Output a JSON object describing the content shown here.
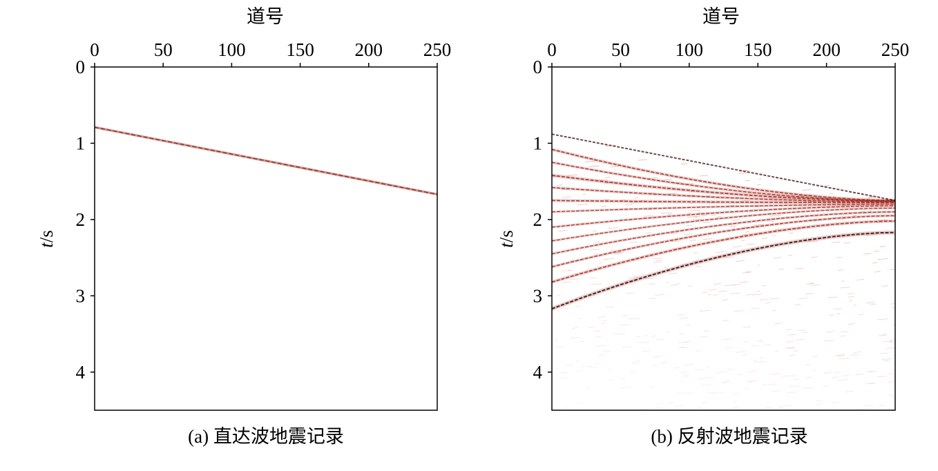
{
  "chart_data": [
    {
      "type": "heatmap",
      "caption": "(a) 直达波地震记录",
      "xlabel": "道号",
      "ylabel_italic": "t",
      "ylabel_rest": "/s",
      "xlim": [
        0,
        250
      ],
      "ylim": [
        0,
        4.5
      ],
      "x_ticks": [
        0,
        50,
        100,
        150,
        200,
        250
      ],
      "y_ticks": [
        0,
        1,
        2,
        3,
        4
      ],
      "x_axis_position": "top",
      "y_axis_inverted": true,
      "grid": false,
      "colormap": [
        "#ffffff",
        "#c0392b",
        "#000000"
      ],
      "events": [
        {
          "kind": "direct",
          "x": [
            0,
            250
          ],
          "t": [
            0.79,
            1.67
          ],
          "strength": 1.0
        }
      ]
    },
    {
      "type": "heatmap",
      "caption": "(b) 反射波地震记录",
      "xlabel": "道号",
      "ylabel_italic": "t",
      "ylabel_rest": "/s",
      "xlim": [
        0,
        250
      ],
      "ylim": [
        0,
        4.5
      ],
      "x_ticks": [
        0,
        50,
        100,
        150,
        200,
        250
      ],
      "y_ticks": [
        0,
        1,
        2,
        3,
        4
      ],
      "x_axis_position": "top",
      "y_axis_inverted": true,
      "grid": false,
      "colormap": [
        "#ffffff",
        "#c0392b",
        "#000000"
      ],
      "mute_line": {
        "x": [
          0,
          250
        ],
        "t": [
          0.88,
          1.75
        ]
      },
      "events": [
        {
          "kind": "reflection",
          "t0": 3.17,
          "t_end": 2.17,
          "strength": 1.0
        },
        {
          "kind": "reflection",
          "t0": 2.82,
          "t_end": 2.02,
          "strength": 0.75
        },
        {
          "kind": "reflection",
          "t0": 2.62,
          "t_end": 1.95,
          "strength": 0.6
        },
        {
          "kind": "reflection",
          "t0": 2.45,
          "t_end": 1.9,
          "strength": 0.55
        },
        {
          "kind": "reflection",
          "t0": 2.28,
          "t_end": 1.85,
          "strength": 0.5
        },
        {
          "kind": "reflection",
          "t0": 2.1,
          "t_end": 1.82,
          "strength": 0.55
        },
        {
          "kind": "reflection",
          "t0": 1.9,
          "t_end": 1.8,
          "strength": 0.5
        },
        {
          "kind": "reflection",
          "t0": 1.75,
          "t_end": 1.78,
          "strength": 0.7
        },
        {
          "kind": "reflection",
          "t0": 1.58,
          "t_end": 1.77,
          "strength": 0.6
        },
        {
          "kind": "reflection",
          "t0": 1.42,
          "t_end": 1.76,
          "strength": 0.8
        },
        {
          "kind": "reflection",
          "t0": 1.25,
          "t_end": 1.76,
          "strength": 0.6
        },
        {
          "kind": "reflection",
          "t0": 1.08,
          "t_end": 1.75,
          "strength": 0.7
        }
      ]
    }
  ]
}
